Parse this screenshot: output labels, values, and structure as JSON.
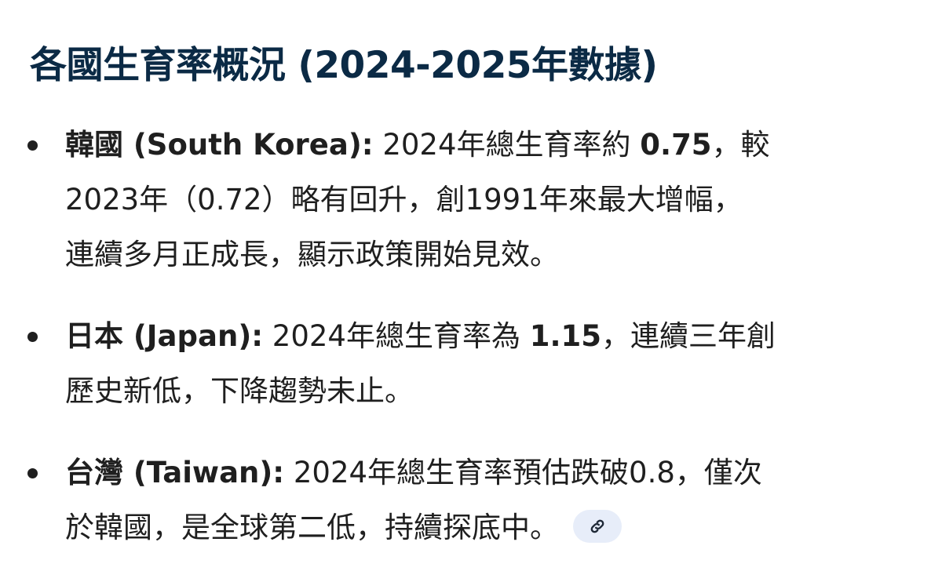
{
  "title": "各國生育率概況 (2024-2025年數據)",
  "items": [
    {
      "lines": [
        [
          {
            "t": "韓國 (South Korea):",
            "b": true
          },
          {
            "t": " 2024年總生育率約 ",
            "b": false
          },
          {
            "t": "0.75",
            "b": true
          },
          {
            "t": "，較",
            "b": false
          }
        ],
        [
          {
            "t": "2023年（0.72）略有回升，創1991年來最大增幅，",
            "b": false
          }
        ],
        [
          {
            "t": "連續多月正成長，顯示政策開始見效。",
            "b": false
          }
        ]
      ]
    },
    {
      "lines": [
        [
          {
            "t": "日本 (Japan):",
            "b": true
          },
          {
            "t": " 2024年總生育率為 ",
            "b": false
          },
          {
            "t": "1.15",
            "b": true
          },
          {
            "t": "，連續三年創",
            "b": false
          }
        ],
        [
          {
            "t": "歷史新低，下降趨勢未止。",
            "b": false
          }
        ]
      ]
    },
    {
      "lines": [
        [
          {
            "t": "台灣 (Taiwan):",
            "b": true
          },
          {
            "t": " 2024年總生育率預估跌破0.8，僅次",
            "b": false
          }
        ],
        [
          {
            "t": "於韓國，是全球第二低，持續探底中。",
            "b": false
          }
        ]
      ]
    }
  ],
  "source_chip": {
    "icon": "link-icon",
    "bg": "#e7edf9"
  },
  "colors": {
    "title": "#0b2a45",
    "text": "#1f1f1f"
  }
}
